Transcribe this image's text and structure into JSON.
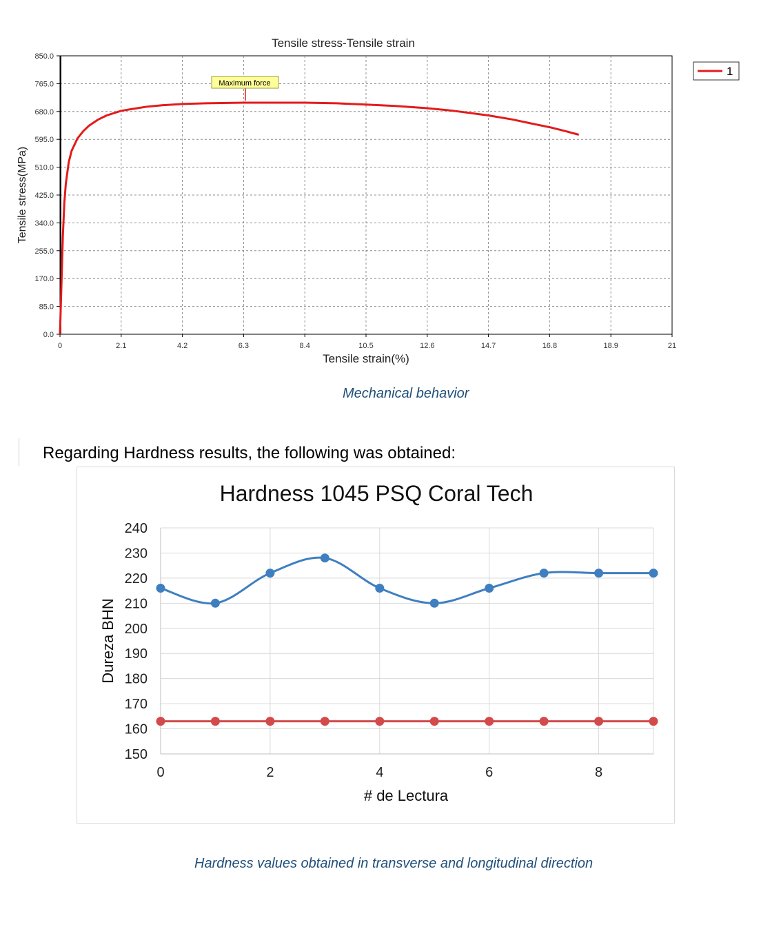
{
  "charts": [
    {
      "title": "Tensile stress-Tensile strain",
      "xlabel": "Tensile strain(%)",
      "ylabel": "Tensile stress(MPa)",
      "x_ticks": [
        "0",
        "2.1",
        "4.2",
        "6.3",
        "8.4",
        "10.5",
        "12.6",
        "14.7",
        "16.8",
        "18.9",
        "21"
      ],
      "y_ticks": [
        "0.0",
        "85.0",
        "170.0",
        "255.0",
        "340.0",
        "425.0",
        "510.0",
        "595.0",
        "680.0",
        "765.0",
        "850.0"
      ],
      "legend": [
        "1"
      ],
      "annotation": "Maximum force",
      "caption": "Mechanical behavior"
    },
    {
      "title": "Hardness 1045 PSQ Coral Tech",
      "xlabel": "# de Lectura",
      "ylabel": "Dureza BHN",
      "x_ticks": [
        "0",
        "2",
        "4",
        "6",
        "8"
      ],
      "y_ticks": [
        "150",
        "160",
        "170",
        "180",
        "190",
        "200",
        "210",
        "220",
        "230",
        "240"
      ],
      "caption": "Hardness values obtained in transverse and longitudinal direction"
    }
  ],
  "paragraph": "Regarding Hardness results, the following was obtained:",
  "chart_data": [
    {
      "type": "line",
      "title": "Tensile stress-Tensile strain",
      "xlabel": "Tensile strain(%)",
      "ylabel": "Tensile stress(MPa)",
      "xlim": [
        0,
        21
      ],
      "ylim": [
        0,
        850
      ],
      "grid": true,
      "legend_position": "outside-top-right",
      "color": "#e31b1b",
      "series": [
        {
          "name": "1",
          "x": [
            0,
            0.05,
            0.1,
            0.15,
            0.2,
            0.3,
            0.4,
            0.6,
            0.8,
            1.0,
            1.3,
            1.6,
            2.1,
            2.5,
            3.0,
            3.5,
            4.2,
            5.0,
            6.3,
            7.0,
            8.4,
            9.5,
            10.5,
            11.5,
            12.6,
            13.5,
            14.7,
            15.5,
            16.3,
            16.8,
            17.3,
            17.8
          ],
          "y": [
            0,
            150,
            300,
            400,
            460,
            525,
            560,
            598,
            620,
            637,
            655,
            668,
            682,
            688,
            695,
            699,
            703,
            705,
            707,
            707,
            707,
            705,
            701,
            697,
            690,
            682,
            668,
            656,
            641,
            632,
            621,
            609
          ]
        }
      ],
      "annotations": [
        {
          "text": "Maximum force",
          "x": 6.3,
          "y": 707
        }
      ]
    },
    {
      "type": "line",
      "title": "Hardness 1045 PSQ Coral Tech",
      "xlabel": "# de Lectura",
      "ylabel": "Dureza BHN",
      "xlim": [
        0,
        9
      ],
      "ylim": [
        150,
        240
      ],
      "grid": true,
      "smooth": true,
      "series": [
        {
          "x": [
            0,
            1,
            2,
            3,
            4,
            5,
            6,
            7,
            8,
            9
          ],
          "values": [
            216,
            210,
            222,
            228,
            216,
            210,
            216,
            222,
            222,
            222
          ],
          "color": "#3f7fc0"
        },
        {
          "x": [
            0,
            1,
            2,
            3,
            4,
            5,
            6,
            7,
            8,
            9
          ],
          "values": [
            163,
            163,
            163,
            163,
            163,
            163,
            163,
            163,
            163,
            163
          ],
          "color": "#d34a4a"
        }
      ]
    }
  ]
}
